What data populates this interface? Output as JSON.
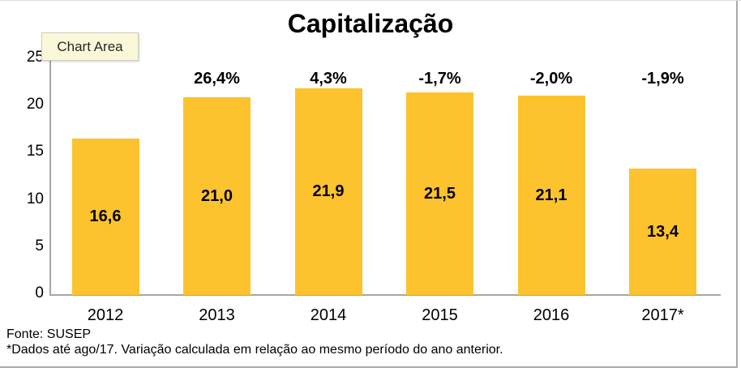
{
  "window": {
    "tooltip": "Chart Area"
  },
  "title": "Capitalização",
  "chart_data": {
    "type": "bar",
    "title": "Capitalização",
    "categories": [
      "2012",
      "2013",
      "2014",
      "2015",
      "2016",
      "2017*"
    ],
    "values": [
      16.6,
      21.0,
      21.9,
      21.5,
      21.1,
      13.4
    ],
    "value_labels": [
      "16,6",
      "21,0",
      "21,9",
      "21,5",
      "21,1",
      "13,4"
    ],
    "pct_labels": [
      "",
      "26,4%",
      "4,3%",
      "-1,7%",
      "-2,0%",
      "-1,9%"
    ],
    "xlabel": "",
    "ylabel": "",
    "ylim": [
      0,
      25
    ],
    "yticks": [
      0,
      5,
      10,
      15,
      20,
      25
    ],
    "grid": false,
    "legend": "none",
    "bar_color": "#FCC32E",
    "axis_color": "#A6A6A6"
  },
  "footer": {
    "source": "Fonte: SUSEP",
    "note": "*Dados até ago/17. Variação calculada em relação ao mesmo período do ano anterior."
  }
}
